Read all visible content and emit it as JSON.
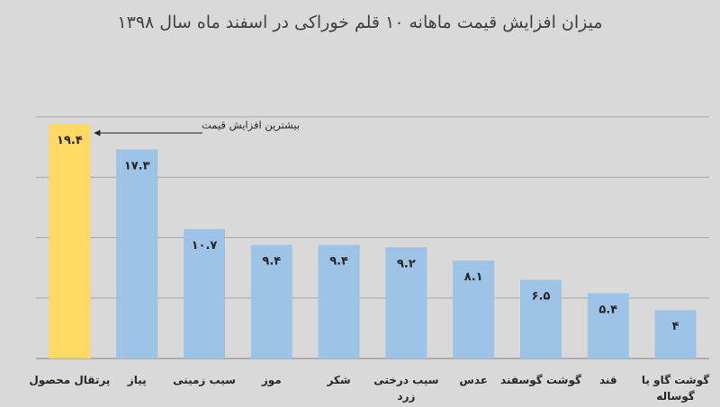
{
  "chart_data": {
    "type": "bar",
    "title": "میزان افزایش قیمت ماهانه ۱۰ قلم خوراکی در اسفند ماه سال ۱۳۹۸",
    "categories": [
      [
        "پرتقال محصول"
      ],
      [
        "پیاز"
      ],
      [
        "سیب زمینی"
      ],
      [
        "موز"
      ],
      [
        "شکر"
      ],
      [
        "سیب درختی",
        "زرد"
      ],
      [
        "عدس"
      ],
      [
        "گوشت گوسفند"
      ],
      [
        "قند"
      ],
      [
        "گوشت گاو یا",
        "گوساله"
      ]
    ],
    "values": [
      19.4,
      17.3,
      10.7,
      9.4,
      9.4,
      9.2,
      8.1,
      6.5,
      5.4,
      4
    ],
    "value_labels": [
      "۱۹.۴",
      "۱۷.۳",
      "۱۰.۷",
      "۹.۴",
      "۹.۴",
      "۹.۲",
      "۸.۱",
      "۶.۵",
      "۵.۴",
      "۴"
    ],
    "highlight_index": 0,
    "annotation": "بیشترین افزایش قیمت",
    "ylim": [
      0,
      20
    ],
    "gridlines": [
      0,
      5,
      10,
      15,
      20
    ],
    "xlabel": "",
    "ylabel": "",
    "colors": {
      "background": "#d9d9d9",
      "bar": "#9dc3e6",
      "highlight_bar": "#ffd966",
      "grid": "#a6a6a6",
      "axis": "#7f7f7f",
      "text": "#262626"
    }
  }
}
